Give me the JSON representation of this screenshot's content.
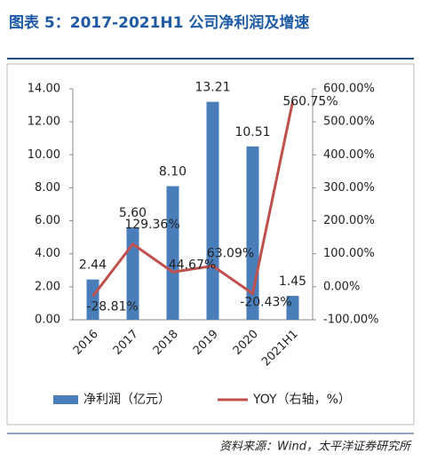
{
  "title": "图表 5：2017-2021H1 公司净利润及增速",
  "source": "资料来源：Wind，太平洋证券研究所",
  "chart_data": {
    "type": "bar-line",
    "categories": [
      "2016",
      "2017",
      "2018",
      "2019",
      "2020",
      "2021H1"
    ],
    "series": [
      {
        "name": "净利润（亿元）",
        "type": "bar",
        "color": "#4a7ebb",
        "values": [
          2.44,
          5.6,
          8.1,
          13.21,
          10.51,
          1.45
        ],
        "value_labels": [
          "2.44",
          "5.60",
          "8.10",
          "13.21",
          "10.51",
          "1.45"
        ]
      },
      {
        "name": "YOY（右轴，%）",
        "type": "line",
        "axis": "y2",
        "color": "#c0504d",
        "values": [
          -28.81,
          129.36,
          44.67,
          63.09,
          -20.43,
          560.75
        ],
        "value_labels": [
          "-28.81%",
          "129.36%",
          "44.67%",
          "63.09%",
          "-20.43%",
          "560.75%"
        ]
      }
    ],
    "ylim": [
      0,
      14
    ],
    "yticks": [
      {
        "value": 0,
        "label": "0.00"
      },
      {
        "value": 2,
        "label": "2.00"
      },
      {
        "value": 4,
        "label": "4.00"
      },
      {
        "value": 6,
        "label": "6.00"
      },
      {
        "value": 8,
        "label": "8.00"
      },
      {
        "value": 10,
        "label": "10.00"
      },
      {
        "value": 12,
        "label": "12.00"
      },
      {
        "value": 14,
        "label": "14.00"
      }
    ],
    "y2lim": [
      -100,
      600
    ],
    "y2ticks": [
      {
        "value": -100,
        "label": "-100.00%"
      },
      {
        "value": 0,
        "label": "0.00%"
      },
      {
        "value": 100,
        "label": "100.00%"
      },
      {
        "value": 200,
        "label": "200.00%"
      },
      {
        "value": 300,
        "label": "300.00%"
      },
      {
        "value": 400,
        "label": "400.00%"
      },
      {
        "value": 500,
        "label": "500.00%"
      },
      {
        "value": 600,
        "label": "600.00%"
      }
    ],
    "legend": "bottom"
  }
}
